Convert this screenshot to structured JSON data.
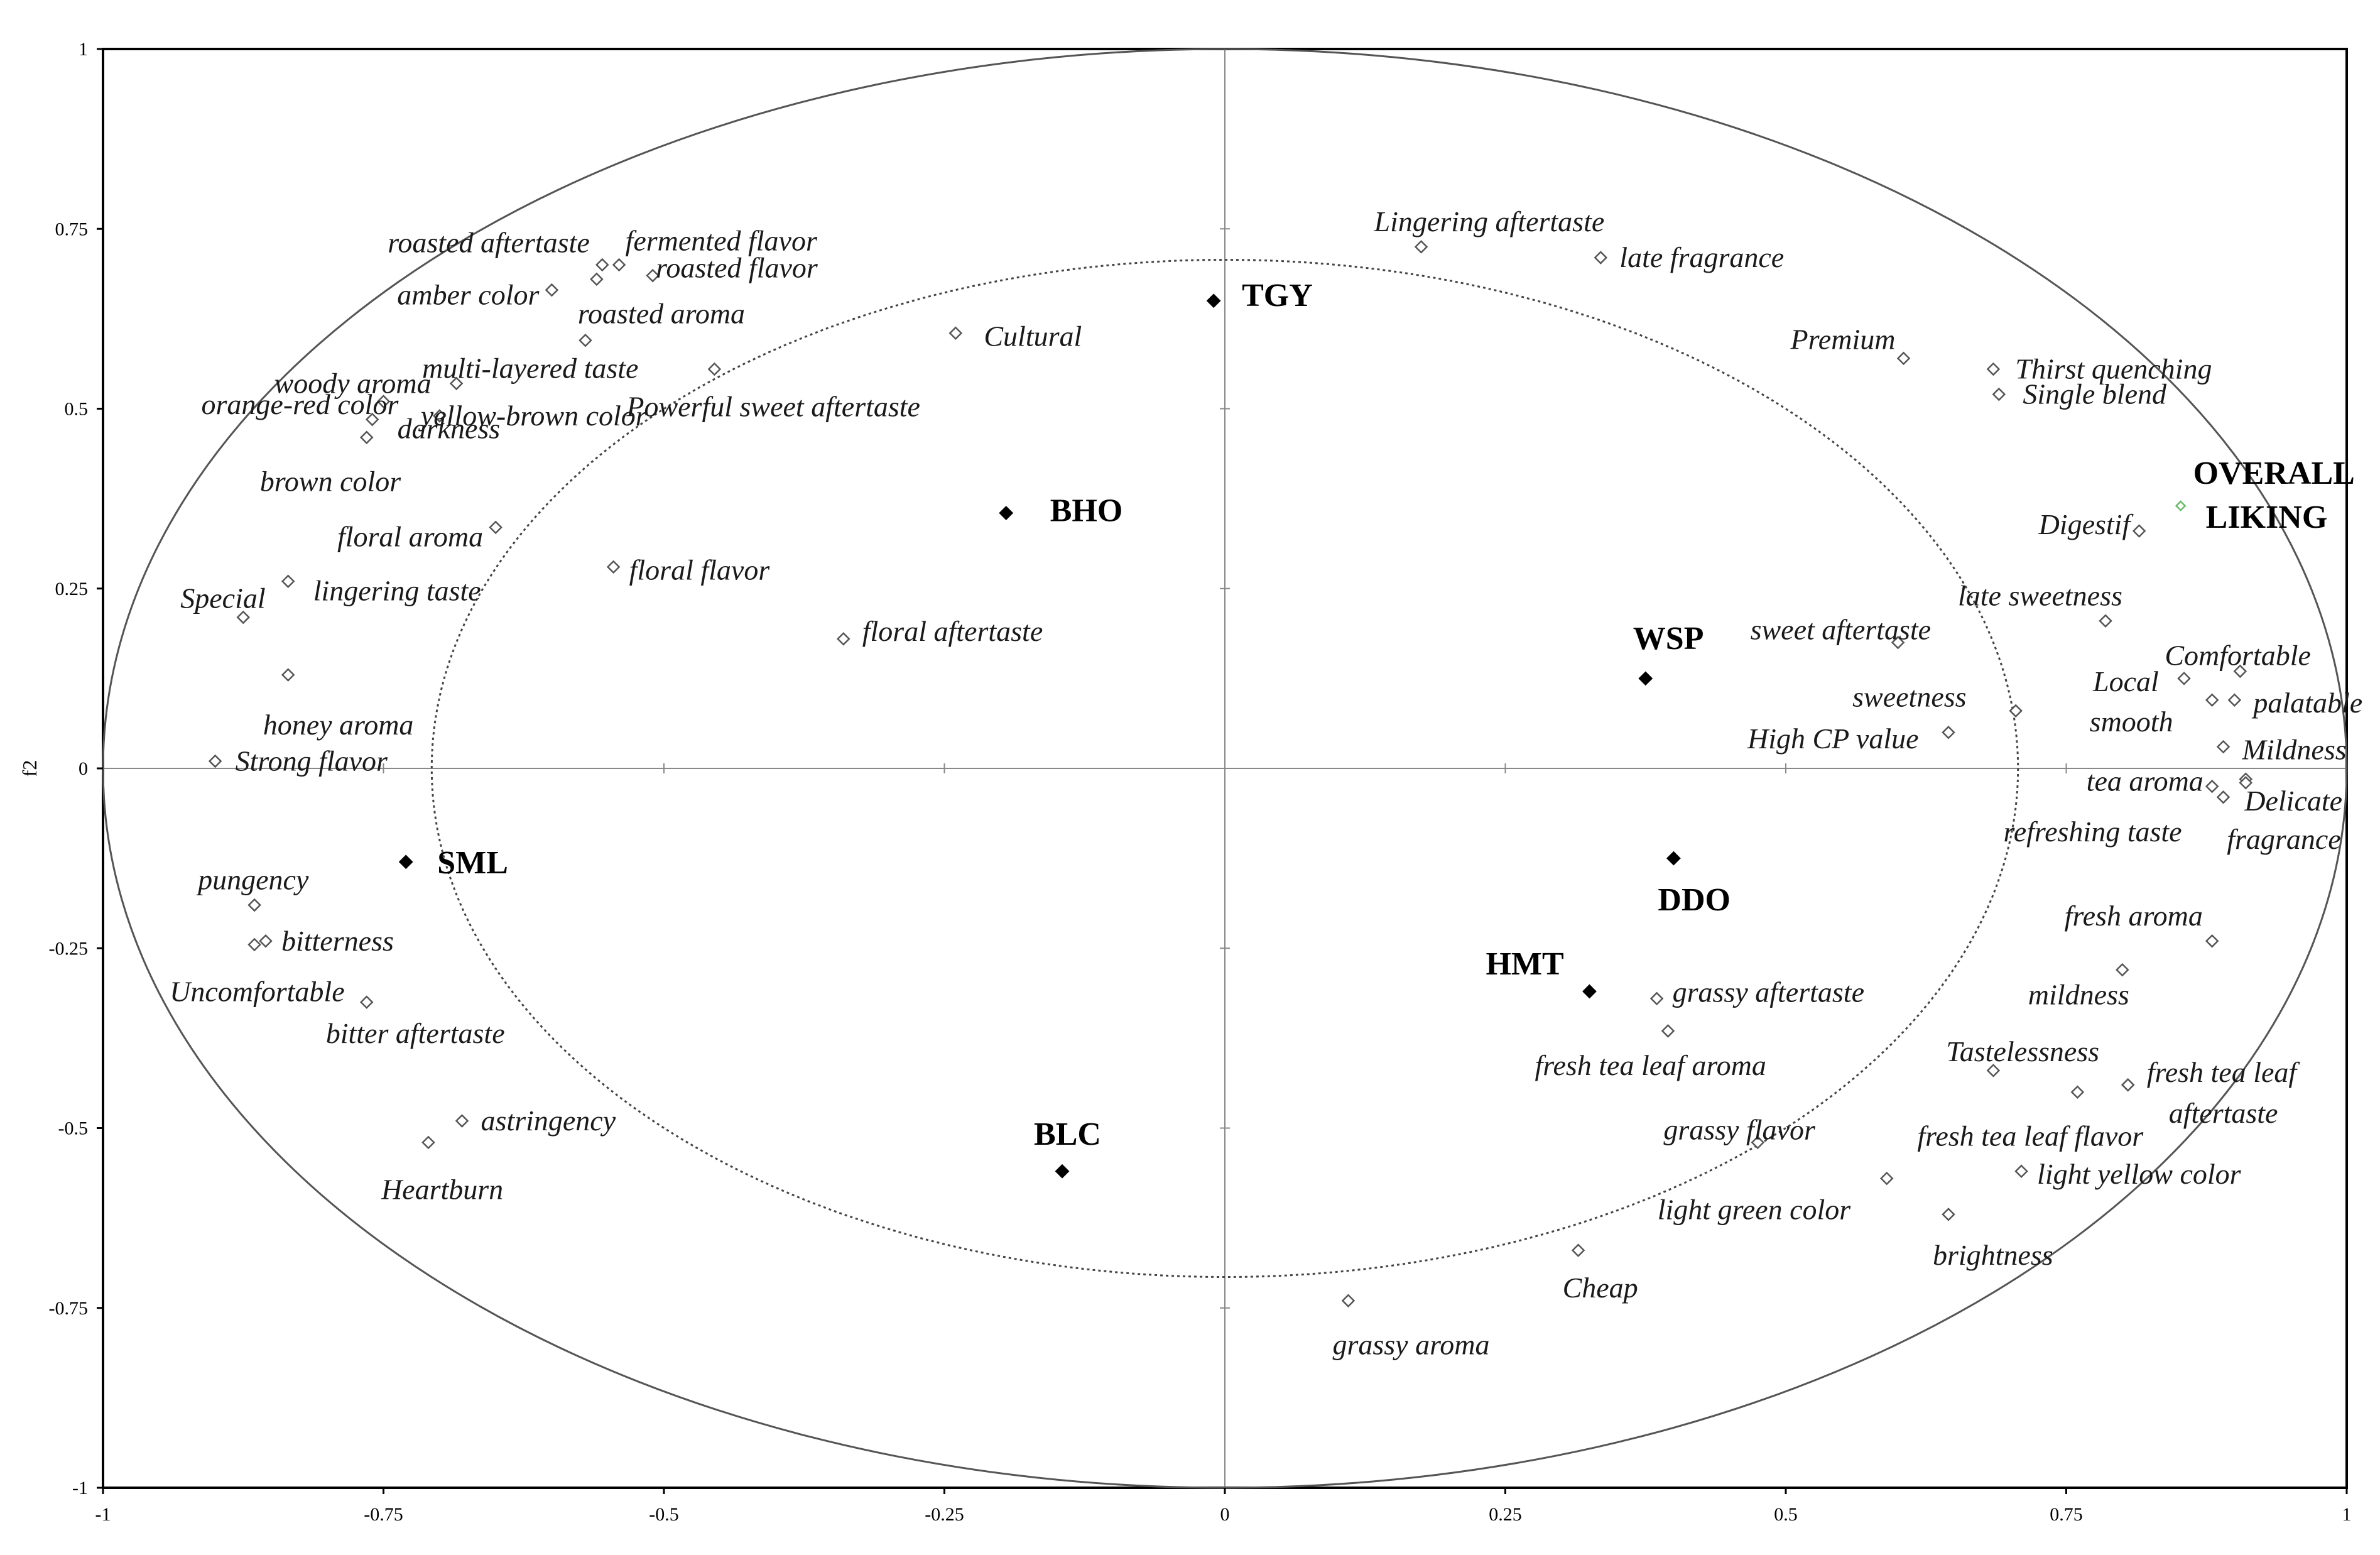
{
  "chart_data": {
    "type": "scatter",
    "title": "",
    "xlabel": "",
    "ylabel": "f2",
    "xlim": [
      -1,
      1
    ],
    "ylim": [
      -1,
      1
    ],
    "x_ticks": [
      "-1",
      "-0.75",
      "-0.5",
      "-0.25",
      "0",
      "0.25",
      "0.5",
      "0.75",
      "1"
    ],
    "y_ticks": [
      "1",
      "0.75",
      "0.5",
      "0.25",
      "0",
      "-0.25",
      "-0.5",
      "-0.75",
      "-1"
    ],
    "circles": [
      {
        "name": "outer",
        "radius": 1.0,
        "style": "solid"
      },
      {
        "name": "inner",
        "radius": 0.707,
        "style": "dotted"
      }
    ],
    "colors": {
      "axis": "#000000",
      "attribute_marker": "#555555",
      "product_marker": "#000000",
      "overall_marker": "#66bb66"
    },
    "products": [
      {
        "label": "TGY",
        "x": -0.01,
        "y": 0.65
      },
      {
        "label": "BHO",
        "x": -0.195,
        "y": 0.355
      },
      {
        "label": "WSP",
        "x": 0.375,
        "y": 0.125
      },
      {
        "label": "SML",
        "x": -0.73,
        "y": -0.13
      },
      {
        "label": "DDO",
        "x": 0.4,
        "y": -0.125
      },
      {
        "label": "HMT",
        "x": 0.325,
        "y": -0.31
      },
      {
        "label": "BLC",
        "x": -0.145,
        "y": -0.56
      }
    ],
    "overall": {
      "label_lines": [
        "OVERALL",
        "LIKING"
      ],
      "x": 0.852,
      "y": 0.365
    },
    "attributes": [
      {
        "label": "roasted aftertaste",
        "x": -0.555,
        "y": 0.7
      },
      {
        "label": "fermented flavor",
        "x": -0.54,
        "y": 0.7
      },
      {
        "label": "roasted flavor",
        "x": -0.51,
        "y": 0.685
      },
      {
        "label": "amber color",
        "x": -0.6,
        "y": 0.665
      },
      {
        "label": "roasted aroma",
        "x": -0.56,
        "y": 0.68
      },
      {
        "label": "multi-layered taste",
        "x": -0.57,
        "y": 0.595
      },
      {
        "label": "Cultural",
        "x": -0.24,
        "y": 0.605
      },
      {
        "label": "woody aroma",
        "x": -0.685,
        "y": 0.535
      },
      {
        "label": "Powerful sweet aftertaste",
        "x": -0.455,
        "y": 0.555
      },
      {
        "label": "orange-red color",
        "x": -0.75,
        "y": 0.51
      },
      {
        "label": "yellow-brown color",
        "x": -0.7,
        "y": 0.49
      },
      {
        "label": "darkness",
        "x": -0.76,
        "y": 0.485
      },
      {
        "label": "brown color",
        "x": -0.765,
        "y": 0.46
      },
      {
        "label": "floral aroma",
        "x": -0.65,
        "y": 0.335
      },
      {
        "label": "floral flavor",
        "x": -0.545,
        "y": 0.28
      },
      {
        "label": "Special",
        "x": -0.875,
        "y": 0.21
      },
      {
        "label": "lingering taste",
        "x": -0.835,
        "y": 0.26
      },
      {
        "label": "floral aftertaste",
        "x": -0.34,
        "y": 0.18
      },
      {
        "label": "honey aroma",
        "x": -0.835,
        "y": 0.13
      },
      {
        "label": "Strong flavor",
        "x": -0.9,
        "y": 0.01
      },
      {
        "label": "pungency",
        "x": -0.865,
        "y": -0.19
      },
      {
        "label": "bitterness",
        "x": -0.855,
        "y": -0.24
      },
      {
        "label": "Uncomfortable",
        "x": -0.865,
        "y": -0.245
      },
      {
        "label": "bitter aftertaste",
        "x": -0.765,
        "y": -0.325
      },
      {
        "label": "astringency",
        "x": -0.68,
        "y": -0.49
      },
      {
        "label": "Heartburn",
        "x": -0.71,
        "y": -0.52
      },
      {
        "label": "Lingering aftertaste",
        "x": 0.175,
        "y": 0.725
      },
      {
        "label": "late fragrance",
        "x": 0.335,
        "y": 0.71
      },
      {
        "label": "Premium",
        "x": 0.605,
        "y": 0.57
      },
      {
        "label": "Thirst quenching",
        "x": 0.685,
        "y": 0.555
      },
      {
        "label": "Single blend",
        "x": 0.69,
        "y": 0.52
      },
      {
        "label": "Digestif",
        "x": 0.815,
        "y": 0.33
      },
      {
        "label": "late sweetness",
        "x": 0.785,
        "y": 0.205
      },
      {
        "label": "sweet aftertaste",
        "x": 0.6,
        "y": 0.175
      },
      {
        "label": "Comfortable",
        "x": 0.905,
        "y": 0.135
      },
      {
        "label": "Local",
        "x": 0.855,
        "y": 0.125
      },
      {
        "label": "smooth",
        "x": 0.88,
        "y": 0.095
      },
      {
        "label": "palatable",
        "x": 0.9,
        "y": 0.095
      },
      {
        "label": "sweetness",
        "x": 0.705,
        "y": 0.08
      },
      {
        "label": "High CP value",
        "x": 0.645,
        "y": 0.05
      },
      {
        "label": "Mildness",
        "x": 0.89,
        "y": 0.03
      },
      {
        "label": "tea aroma",
        "x": 0.88,
        "y": -0.025
      },
      {
        "label": "Delicate",
        "x": 0.91,
        "y": -0.015
      },
      {
        "label": "refreshing taste",
        "x": 0.89,
        "y": -0.04
      },
      {
        "label": "fragrance",
        "x": 0.91,
        "y": -0.02
      },
      {
        "label": "fresh aroma",
        "x": 0.88,
        "y": -0.24
      },
      {
        "label": "mildness",
        "x": 0.8,
        "y": -0.28
      },
      {
        "label": "grassy aftertaste",
        "x": 0.385,
        "y": -0.32
      },
      {
        "label": "fresh tea leaf aroma",
        "x": 0.395,
        "y": -0.365
      },
      {
        "label": "Tastelessness",
        "x": 0.685,
        "y": -0.42
      },
      {
        "label": "fresh tea leaf",
        "x": 0.805,
        "y": -0.44
      },
      {
        "label": "aftertaste",
        "x": 0.805,
        "y": -0.44
      },
      {
        "label": "fresh tea leaf flavor",
        "x": 0.76,
        "y": -0.45
      },
      {
        "label": "grassy flavor",
        "x": 0.475,
        "y": -0.52
      },
      {
        "label": "light yellow color",
        "x": 0.71,
        "y": -0.56
      },
      {
        "label": "light green color",
        "x": 0.59,
        "y": -0.57
      },
      {
        "label": "brightness",
        "x": 0.645,
        "y": -0.62
      },
      {
        "label": "Cheap",
        "x": 0.315,
        "y": -0.67
      },
      {
        "label": "grassy aroma",
        "x": 0.11,
        "y": -0.74
      }
    ]
  }
}
